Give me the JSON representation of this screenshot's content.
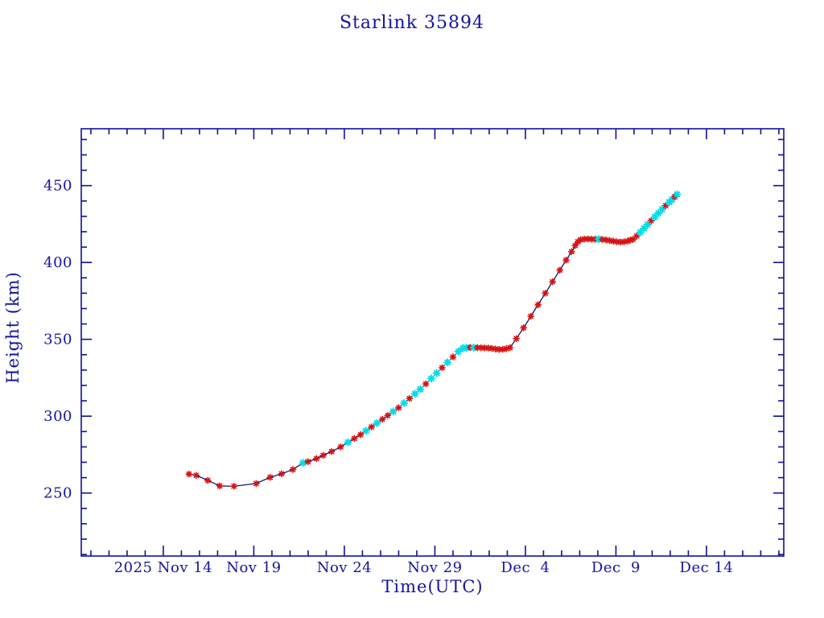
{
  "colors": {
    "axis": "#10109a",
    "text": "#1414a0",
    "line": "#000070",
    "marker_red": "#d61212",
    "marker_cyan": "#00dcea",
    "background": "#ffffff"
  },
  "chart_data": {
    "type": "line",
    "title": "Starlink 35894",
    "xlabel": "Time(UTC)",
    "ylabel": "Height (km)",
    "grid": false,
    "legend": null,
    "x_unit": "days since 2025 Nov 14 00:00 UTC",
    "xlim": [
      -4.53,
      34.27
    ],
    "ylim": [
      209,
      487
    ],
    "x_major_ticks": [
      {
        "day": 0,
        "label": "2025 Nov 14"
      },
      {
        "day": 5,
        "label": "Nov 19"
      },
      {
        "day": 10,
        "label": "Nov 24"
      },
      {
        "day": 15,
        "label": "Nov 29"
      },
      {
        "day": 20,
        "label": "Dec  4"
      },
      {
        "day": 25,
        "label": "Dec  9"
      },
      {
        "day": 30,
        "label": "Dec 14"
      }
    ],
    "x_minor_step_days": 1,
    "y_major_ticks": [
      250,
      300,
      350,
      400,
      450
    ],
    "y_minor_step": 10,
    "marker_style": "asterisk",
    "marker_color_legend": {
      "r": "observed-red",
      "c": "observed-cyan"
    },
    "series": [
      {
        "name": "height",
        "points": [
          [
            1.42,
            262.3,
            "r"
          ],
          [
            1.82,
            261.5,
            "r"
          ],
          [
            2.46,
            258.2,
            "r"
          ],
          [
            3.12,
            254.6,
            "r"
          ],
          [
            3.9,
            254.4,
            "r"
          ],
          [
            5.13,
            256.2,
            "r"
          ],
          [
            5.9,
            260.2,
            "r"
          ],
          [
            6.53,
            262.5,
            "r"
          ],
          [
            7.16,
            265.3,
            "r"
          ],
          [
            7.72,
            269.6,
            "c"
          ],
          [
            7.99,
            270.4,
            "r"
          ],
          [
            8.46,
            272.4,
            "r"
          ],
          [
            8.83,
            274.5,
            "r"
          ],
          [
            9.3,
            277.0,
            "r"
          ],
          [
            9.8,
            280.0,
            "r"
          ],
          [
            10.2,
            283.0,
            "c"
          ],
          [
            10.55,
            285.5,
            "r"
          ],
          [
            10.9,
            288.0,
            "r"
          ],
          [
            11.2,
            290.5,
            "c"
          ],
          [
            11.5,
            293.0,
            "r"
          ],
          [
            11.8,
            295.5,
            "c"
          ],
          [
            12.1,
            298.0,
            "r"
          ],
          [
            12.4,
            300.5,
            "r"
          ],
          [
            12.7,
            303.0,
            "c"
          ],
          [
            13.0,
            305.5,
            "r"
          ],
          [
            13.3,
            308.5,
            "c"
          ],
          [
            13.6,
            311.5,
            "r"
          ],
          [
            13.9,
            314.5,
            "c"
          ],
          [
            14.2,
            317.5,
            "c"
          ],
          [
            14.5,
            321.0,
            "r"
          ],
          [
            14.8,
            324.5,
            "c"
          ],
          [
            15.1,
            328.0,
            "c"
          ],
          [
            15.4,
            331.5,
            "r"
          ],
          [
            15.7,
            335.0,
            "c"
          ],
          [
            16.0,
            338.5,
            "r"
          ],
          [
            16.3,
            342.0,
            "c"
          ],
          [
            16.55,
            344.2,
            "c"
          ],
          [
            16.75,
            344.6,
            "c"
          ],
          [
            16.95,
            344.7,
            "r"
          ],
          [
            17.15,
            344.6,
            "c"
          ],
          [
            17.35,
            344.6,
            "r"
          ],
          [
            17.55,
            344.5,
            "r"
          ],
          [
            17.75,
            344.4,
            "r"
          ],
          [
            17.95,
            344.3,
            "r"
          ],
          [
            18.15,
            344.1,
            "r"
          ],
          [
            18.35,
            343.7,
            "r"
          ],
          [
            18.55,
            343.4,
            "r"
          ],
          [
            18.75,
            343.5,
            "r"
          ],
          [
            18.95,
            343.9,
            "r"
          ],
          [
            19.15,
            344.6,
            "r"
          ],
          [
            19.5,
            350.5,
            "r"
          ],
          [
            19.9,
            357.5,
            "r"
          ],
          [
            20.3,
            365.0,
            "r"
          ],
          [
            20.7,
            372.5,
            "r"
          ],
          [
            21.1,
            380.0,
            "r"
          ],
          [
            21.5,
            387.5,
            "r"
          ],
          [
            21.9,
            395.0,
            "r"
          ],
          [
            22.25,
            401.5,
            "r"
          ],
          [
            22.55,
            407.0,
            "r"
          ],
          [
            22.75,
            411.0,
            "r"
          ],
          [
            22.9,
            413.5,
            "r"
          ],
          [
            23.05,
            414.8,
            "r"
          ],
          [
            23.25,
            415.2,
            "r"
          ],
          [
            23.45,
            415.3,
            "r"
          ],
          [
            23.65,
            415.2,
            "r"
          ],
          [
            23.85,
            415.1,
            "r"
          ],
          [
            24.05,
            415.2,
            "c"
          ],
          [
            24.25,
            415.0,
            "r"
          ],
          [
            24.45,
            414.7,
            "r"
          ],
          [
            24.65,
            414.3,
            "r"
          ],
          [
            24.85,
            413.9,
            "r"
          ],
          [
            25.05,
            413.5,
            "r"
          ],
          [
            25.25,
            413.3,
            "r"
          ],
          [
            25.45,
            413.5,
            "r"
          ],
          [
            25.65,
            413.9,
            "r"
          ],
          [
            25.8,
            414.6,
            "r"
          ],
          [
            25.95,
            415.1,
            "r"
          ],
          [
            26.15,
            417.2,
            "r"
          ],
          [
            26.35,
            419.7,
            "c"
          ],
          [
            26.55,
            422.2,
            "c"
          ],
          [
            26.75,
            424.7,
            "c"
          ],
          [
            26.95,
            427.2,
            "r"
          ],
          [
            27.15,
            429.6,
            "c"
          ],
          [
            27.35,
            432.1,
            "c"
          ],
          [
            27.55,
            434.6,
            "c"
          ],
          [
            27.75,
            437.0,
            "r"
          ],
          [
            27.95,
            439.2,
            "c"
          ],
          [
            28.1,
            441.0,
            "c"
          ],
          [
            28.25,
            442.8,
            "r"
          ],
          [
            28.38,
            444.3,
            "c"
          ]
        ]
      }
    ]
  }
}
